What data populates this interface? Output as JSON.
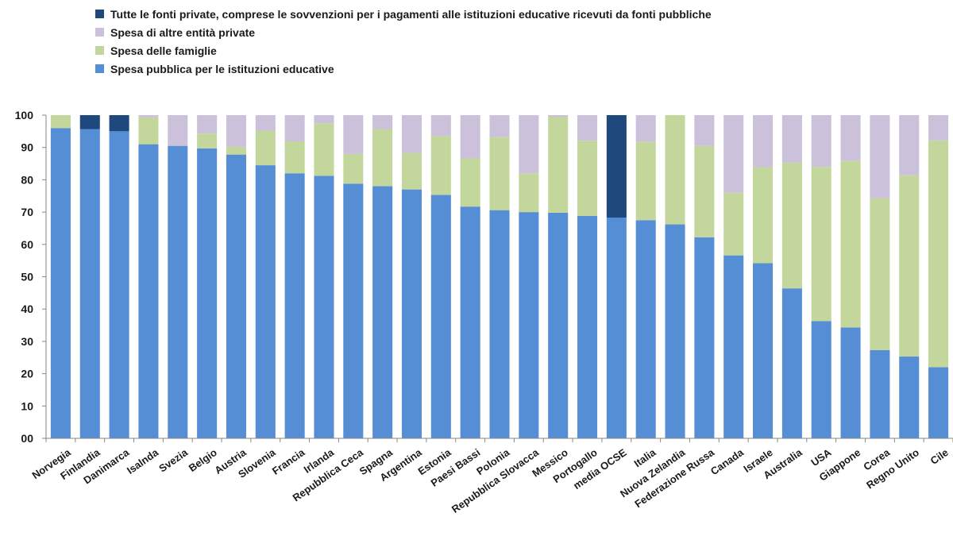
{
  "chart_data": {
    "type": "bar",
    "stacked": true,
    "title": "",
    "xlabel": "",
    "ylabel": "",
    "ylim": [
      0,
      100
    ],
    "yticks": [
      "00",
      "10",
      "20",
      "30",
      "40",
      "50",
      "60",
      "70",
      "80",
      "90",
      "100"
    ],
    "grid": false,
    "legend_position": "top",
    "categories": [
      "Norvegia",
      "Finlandia",
      "Danimarca",
      "Isalnda",
      "Svezia",
      "Belgio",
      "Austria",
      "Slovenia",
      "Francia",
      "Irlanda",
      "Repubblica Ceca",
      "Spagna",
      "Argentina",
      "Estonia",
      "Paesi Bassi",
      "Polonia",
      "Repubblica Slovacca",
      "Messico",
      "Portogallo",
      "media OCSE",
      "Italia",
      "Nuova Zelandia",
      "Federazione Russa",
      "Canada",
      "Israele",
      "Australia",
      "USA",
      "Giappone",
      "Corea",
      "Regno Unito",
      "Cile"
    ],
    "series": [
      {
        "name": "Spesa pubblica per le istituzioni educative",
        "color": "#558ED5",
        "values": [
          96,
          95.7,
          95,
          91,
          90.5,
          89.7,
          87.8,
          84.5,
          82,
          81.2,
          78.8,
          78,
          77,
          75.3,
          71.7,
          70.6,
          70,
          69.8,
          68.8,
          68.3,
          67.5,
          66.2,
          62.2,
          56.6,
          54.2,
          46.4,
          36.3,
          34.3,
          27.3,
          25.3,
          22
        ]
      },
      {
        "name": "Spesa delle famiglie",
        "color": "#C3D69B",
        "values": [
          4,
          0,
          0,
          8.3,
          0,
          4.6,
          2.4,
          10.7,
          9.9,
          16.3,
          9.2,
          17.7,
          11.3,
          18.2,
          14.9,
          22.6,
          12,
          29.7,
          23.3,
          0,
          24.3,
          33.8,
          28.3,
          19.4,
          29.7,
          38.9,
          47.7,
          51.6,
          47,
          56.1,
          70.2
        ]
      },
      {
        "name": "Spesa di altre entità private",
        "color": "#CCC1DA",
        "values": [
          0,
          0,
          0,
          0.7,
          9.5,
          5.7,
          9.8,
          4.8,
          8.1,
          2.5,
          12,
          4.3,
          11.7,
          6.5,
          13.4,
          6.8,
          18,
          0.5,
          7.9,
          0,
          8.2,
          0,
          9.5,
          24,
          16.1,
          14.7,
          16,
          14.1,
          25.7,
          18.6,
          7.8
        ]
      },
      {
        "name": "Tutte le fonti private, comprese le sovvenzioni per i pagamenti alle istituzioni educative ricevuti da fonti pubbliche",
        "color": "#1F497D",
        "values": [
          0,
          4.3,
          5,
          0,
          0,
          0,
          0,
          0,
          0,
          0,
          0,
          0,
          0,
          0,
          0,
          0,
          0,
          0,
          0,
          31.7,
          0,
          0,
          0,
          0,
          0,
          0,
          0,
          0,
          0,
          0,
          0
        ]
      }
    ]
  },
  "legend_order": [
    3,
    2,
    1,
    0
  ]
}
